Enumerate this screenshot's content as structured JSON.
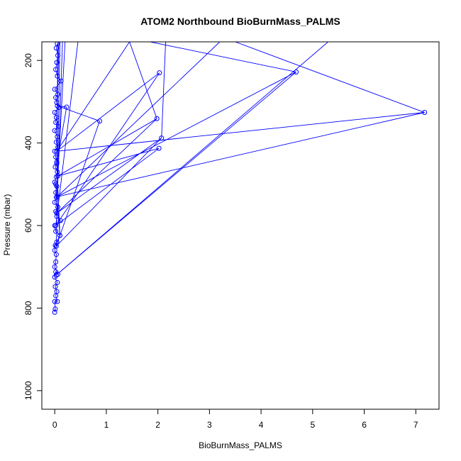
{
  "chart_data": {
    "type": "line",
    "title": "ATOM2 Northbound BioBurnMass_PALMS",
    "xlabel": "BioBurnMass_PALMS",
    "ylabel": "Pressure (mbar)",
    "xlim": [
      -0.25,
      7.45
    ],
    "ylim": [
      1045,
      155
    ],
    "y_reversed": true,
    "xticks": [
      0,
      1,
      2,
      3,
      4,
      5,
      6,
      7
    ],
    "yticks": [
      200,
      400,
      600,
      800,
      1000
    ],
    "grid": false,
    "legend": "none",
    "series_color": "#0000ff",
    "markers": "open-circle",
    "series": [
      {
        "points": [
          [
            0.0,
            810
          ],
          [
            0.01,
            802
          ],
          [
            0.0,
            784
          ],
          [
            0.05,
            784
          ],
          [
            0.02,
            770
          ],
          [
            0.04,
            760
          ],
          [
            0.01,
            748
          ],
          [
            0.05,
            738
          ],
          [
            0.0,
            725
          ],
          [
            0.02,
            712
          ],
          [
            0.06,
            718
          ],
          [
            0.0,
            700
          ],
          [
            0.02,
            688
          ],
          [
            0.03,
            670
          ],
          [
            0.0,
            660
          ],
          [
            0.01,
            648
          ],
          [
            0.04,
            640
          ],
          [
            0.1,
            624
          ],
          [
            0.02,
            614
          ],
          [
            0.0,
            600
          ],
          [
            0.11,
            588
          ],
          [
            0.04,
            578
          ],
          [
            0.02,
            566
          ],
          [
            0.06,
            555
          ],
          [
            0.0,
            544
          ],
          [
            0.03,
            532
          ],
          [
            0.02,
            520
          ],
          [
            0.04,
            505
          ],
          [
            0.0,
            495
          ],
          [
            0.03,
            482
          ],
          [
            0.05,
            470
          ],
          [
            0.01,
            458
          ],
          [
            0.04,
            446
          ],
          [
            0.02,
            434
          ],
          [
            0.0,
            420
          ],
          [
            0.06,
            410
          ],
          [
            0.03,
            398
          ],
          [
            0.05,
            385
          ],
          [
            0.0,
            370
          ],
          [
            0.07,
            360
          ],
          [
            0.02,
            350
          ],
          [
            0.03,
            338
          ],
          [
            0.0,
            326
          ],
          [
            0.08,
            314
          ],
          [
            0.04,
            302
          ],
          [
            0.02,
            290
          ],
          [
            0.06,
            282
          ],
          [
            0.0,
            270
          ],
          [
            0.12,
            250
          ],
          [
            0.05,
            238
          ],
          [
            0.02,
            222
          ],
          [
            0.04,
            205
          ],
          [
            0.06,
            188
          ],
          [
            0.03,
            170
          ],
          [
            0.05,
            160
          ]
        ]
      },
      {
        "points": [
          [
            0.03,
            720
          ],
          [
            4.68,
            228
          ],
          [
            0.05,
            530
          ],
          [
            7.17,
            326
          ],
          [
            0.04,
            420
          ],
          [
            2.03,
            230
          ],
          [
            0.02,
            600
          ],
          [
            2.02,
            413
          ],
          [
            0.06,
            480
          ],
          [
            1.98,
            341
          ],
          [
            0.04,
            570
          ],
          [
            2.07,
            388
          ],
          [
            0.03,
            650
          ],
          [
            0.87,
            347
          ],
          [
            0.05,
            310
          ],
          [
            0.23,
            313
          ],
          [
            0.04,
            450
          ],
          [
            0.1,
            624
          ],
          [
            0.02,
            500
          ]
        ]
      }
    ],
    "extra_segments": [
      [
        [
          0.03,
          720
        ],
        [
          5.3,
          155
        ]
      ],
      [
        [
          0.05,
          530
        ],
        [
          3.2,
          155
        ]
      ],
      [
        [
          0.04,
          420
        ],
        [
          1.45,
          155
        ]
      ],
      [
        [
          0.02,
          600
        ],
        [
          0.45,
          155
        ]
      ],
      [
        [
          0.06,
          480
        ],
        [
          0.2,
          155
        ]
      ],
      [
        [
          2.07,
          388
        ],
        [
          2.15,
          155
        ]
      ],
      [
        [
          1.98,
          341
        ],
        [
          1.45,
          155
        ]
      ],
      [
        [
          4.68,
          228
        ],
        [
          1.85,
          155
        ]
      ],
      [
        [
          7.17,
          326
        ],
        [
          3.5,
          155
        ]
      ],
      [
        [
          0.04,
          570
        ],
        [
          0.15,
          155
        ]
      ],
      [
        [
          0.03,
          650
        ],
        [
          0.1,
          155
        ]
      ],
      [
        [
          0.05,
          310
        ],
        [
          0.08,
          155
        ]
      ],
      [
        [
          0.04,
          450
        ],
        [
          0.06,
          155
        ]
      ]
    ]
  }
}
